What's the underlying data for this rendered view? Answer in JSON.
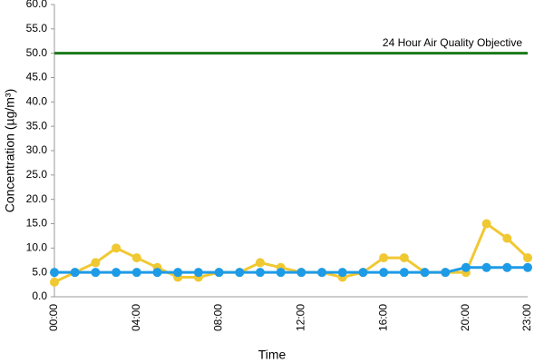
{
  "chart_data": {
    "type": "line",
    "x_label": "Time",
    "y_label": "Concentration (µg/m³)",
    "categories": [
      "00:00",
      null,
      null,
      null,
      "04:00",
      null,
      null,
      null,
      "08:00",
      null,
      null,
      null,
      "12:00",
      null,
      null,
      null,
      "16:00",
      null,
      null,
      null,
      "20:00",
      null,
      null,
      "23:00"
    ],
    "series": [
      {
        "color": "#f0c832",
        "values": [
          3,
          5,
          7,
          10,
          8,
          6,
          4,
          4,
          5,
          5,
          7,
          6,
          5,
          5,
          4,
          5,
          8,
          8,
          5,
          5,
          5,
          15,
          12,
          8
        ]
      },
      {
        "color": "#1e9be6",
        "values": [
          5,
          5,
          5,
          5,
          5,
          5,
          5,
          5,
          5,
          5,
          5,
          5,
          5,
          5,
          5,
          5,
          5,
          5,
          5,
          5,
          6,
          6,
          6,
          6
        ]
      }
    ],
    "reference_line": {
      "value": 50,
      "label": "24 Hour Air Quality Objective",
      "color": "#1a7a1a"
    },
    "ylim": [
      0,
      60
    ],
    "yticks": [
      {
        "value": 0,
        "label": "0.0"
      },
      {
        "value": 5,
        "label": "5.0"
      },
      {
        "value": 10,
        "label": "10.0"
      },
      {
        "value": 15,
        "label": "15.0"
      },
      {
        "value": 20,
        "label": "20.0"
      },
      {
        "value": 25,
        "label": "25.0"
      },
      {
        "value": 30,
        "label": "30.0"
      },
      {
        "value": 35,
        "label": "35.0"
      },
      {
        "value": 40,
        "label": "40.0"
      },
      {
        "value": 45,
        "label": "45.0"
      },
      {
        "value": 50,
        "label": "50.0"
      },
      {
        "value": 55,
        "label": "55.0"
      },
      {
        "value": 60,
        "label": "60.0"
      }
    ]
  }
}
